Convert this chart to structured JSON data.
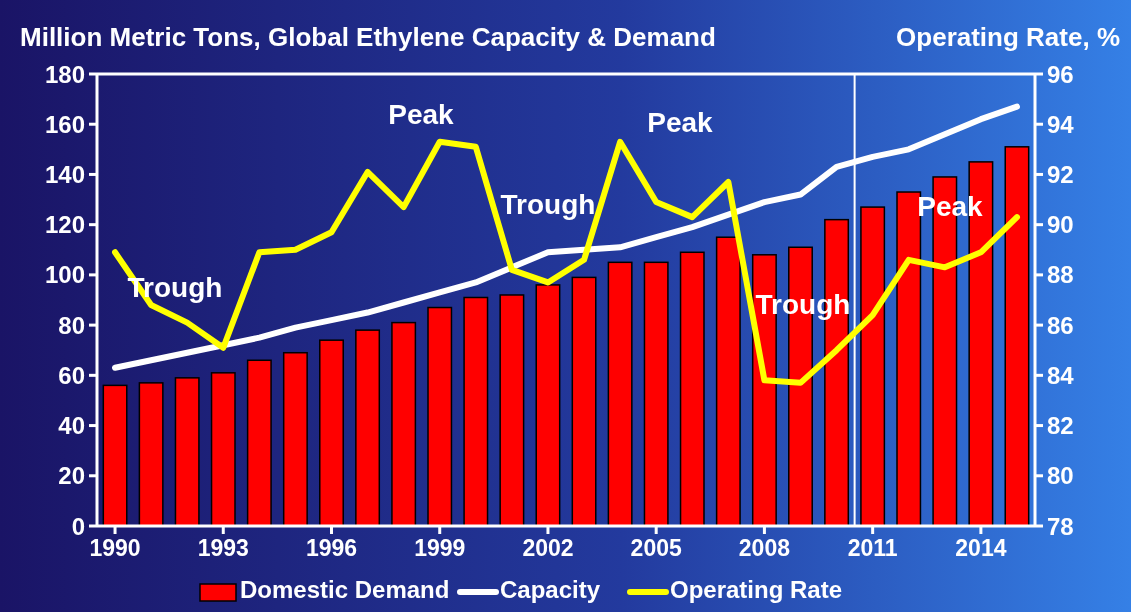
{
  "chart_data": {
    "type": "bar",
    "ylabel": "Million Metric Tons, Global Ethylene Capacity & Demand",
    "y2label": "Operating Rate, %",
    "x": [
      1990,
      1991,
      1992,
      1993,
      1994,
      1995,
      1996,
      1997,
      1998,
      1999,
      2000,
      2001,
      2002,
      2003,
      2004,
      2005,
      2006,
      2007,
      2008,
      2009,
      2010,
      2011,
      2012,
      2013,
      2014,
      2015
    ],
    "xlim": [
      1989.5,
      2015.5
    ],
    "xticks": [
      1990,
      1993,
      1996,
      1999,
      2002,
      2005,
      2008,
      2011,
      2014
    ],
    "ylim": [
      0,
      180
    ],
    "yticks": [
      0,
      20,
      40,
      60,
      80,
      100,
      120,
      140,
      160,
      180
    ],
    "y2lim": [
      78,
      96
    ],
    "y2ticks": [
      78,
      80,
      82,
      84,
      86,
      88,
      90,
      92,
      94,
      96
    ],
    "series": [
      {
        "name": "Domestic Demand",
        "color": "#ff0000",
        "values": [
          56,
          57,
          59,
          61,
          66,
          69,
          74,
          78,
          81,
          87,
          91,
          92,
          96,
          99,
          105,
          105,
          109,
          115,
          108,
          111,
          122,
          127,
          133,
          139,
          145,
          151
        ]
      },
      {
        "name": "Capacity",
        "type": "line",
        "color": "#ffffff",
        "values": [
          63,
          66,
          69,
          72,
          75,
          79,
          82,
          85,
          89,
          93,
          97,
          103,
          109,
          110,
          111,
          115,
          119,
          124,
          129,
          132,
          143,
          147,
          150,
          156,
          162,
          167
        ]
      },
      {
        "name": "Operating Rate",
        "type": "line",
        "axis": "y2",
        "color": "#ffff00",
        "values": [
          88.9,
          86.8,
          86.1,
          85.1,
          88.9,
          89.0,
          89.7,
          92.1,
          90.7,
          93.3,
          93.1,
          88.2,
          87.7,
          88.6,
          93.3,
          90.9,
          90.3,
          91.7,
          83.8,
          83.7,
          85.0,
          86.4,
          88.6,
          88.3,
          88.9,
          90.3
        ]
      }
    ],
    "ref_lines": [
      {
        "axis": "x",
        "value": 2010.5,
        "color": "#ffffff"
      }
    ],
    "annotations": [
      "Trough",
      "Peak",
      "Trough",
      "Peak",
      "Trough",
      "Peak"
    ],
    "legend": "bottom",
    "grid": false
  }
}
